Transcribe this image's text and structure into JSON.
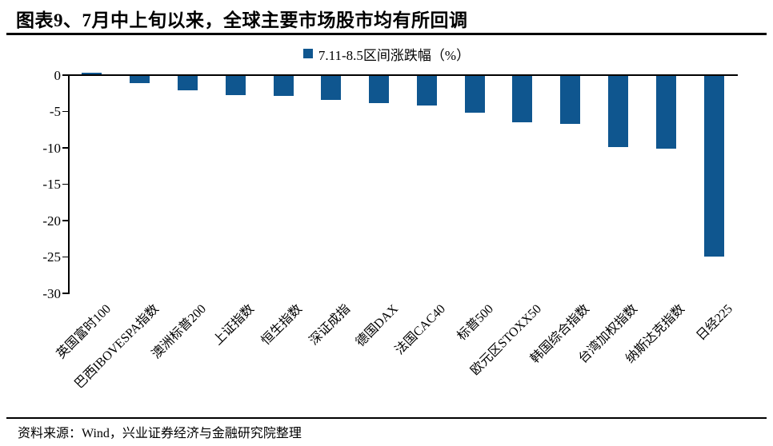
{
  "title": "图表9、7月中上旬以来，全球主要市场股市均有所回调",
  "legend": {
    "label": "7.11-8.5区间涨跌幅（%）"
  },
  "source": "资料来源：Wind，兴业证券经济与金融研究院整理",
  "colors": {
    "bar": "#0F568F",
    "axis": "#000000",
    "background": "#FFFFFF"
  },
  "chart_data": {
    "type": "bar",
    "title": "7.11-8.5区间涨跌幅（%）",
    "categories": [
      "英国富时100",
      "巴西IBOVESPA指数",
      "澳洲标普200",
      "上证指数",
      "恒生指数",
      "深证成指",
      "德国DAX",
      "法国CAC40",
      "标普500",
      "欧元区STOXX50",
      "韩国综合指数",
      "台湾加权指数",
      "纳斯达克指数",
      "日经225"
    ],
    "values": [
      0.3,
      -1.1,
      -2.1,
      -2.7,
      -2.9,
      -3.4,
      -3.9,
      -4.2,
      -5.2,
      -6.5,
      -6.7,
      -9.9,
      -10.1,
      -24.9
    ],
    "xlabel": "",
    "ylabel": "",
    "ylim": [
      -30,
      0
    ],
    "yticks": [
      0,
      -5,
      -10,
      -15,
      -20,
      -25,
      -30
    ],
    "grid": false,
    "legend_position": "top-center",
    "series_color": "#0F568F"
  }
}
